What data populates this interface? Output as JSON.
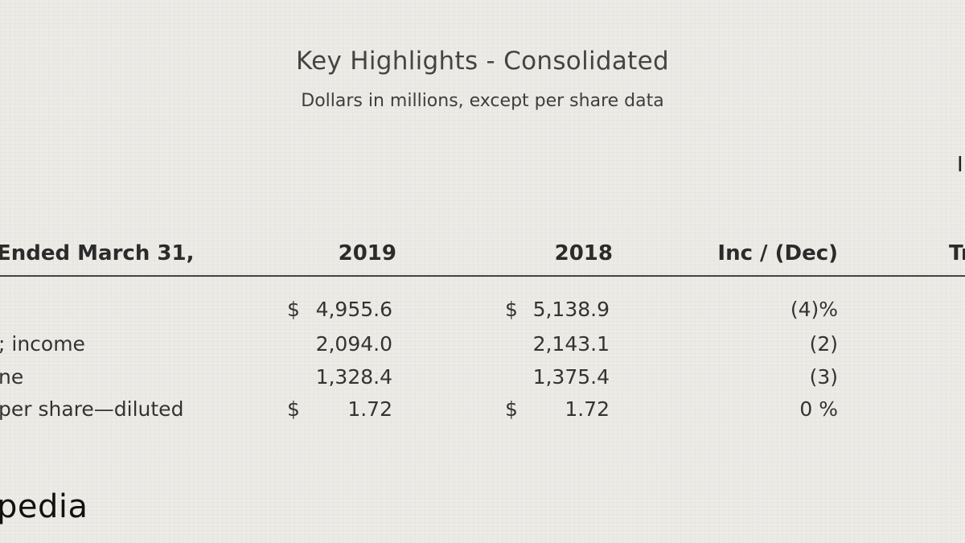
{
  "title": "Key Highlights - Consolidated",
  "subtitle": "Dollars in millions, except per share data",
  "edge_text": "I",
  "table": {
    "headers": {
      "label": "Ended March 31,",
      "col_2019": "2019",
      "col_2018": "2018",
      "col_change": "Inc / (Dec)",
      "col_cut": "Tr"
    },
    "rows": [
      {
        "label": "",
        "dollar_2019": "$",
        "value_2019": "4,955.6",
        "dollar_2018": "$",
        "value_2018": "5,138.9",
        "change": "(4)%"
      },
      {
        "label": "; income",
        "dollar_2019": "",
        "value_2019": "2,094.0",
        "dollar_2018": "",
        "value_2018": "2,143.1",
        "change": "(2)"
      },
      {
        "label": "ne",
        "dollar_2019": "",
        "value_2019": "1,328.4",
        "dollar_2018": "",
        "value_2018": "1,375.4",
        "change": "(3)"
      },
      {
        "label": "per share—diluted",
        "dollar_2019": "$",
        "value_2019": "1.72",
        "dollar_2018": "$",
        "value_2018": "1.72",
        "change": "0 %"
      }
    ]
  },
  "logo_text": "pedia",
  "colors": {
    "background": "#ecebe6",
    "text": "#333333",
    "rule": "#444444"
  }
}
